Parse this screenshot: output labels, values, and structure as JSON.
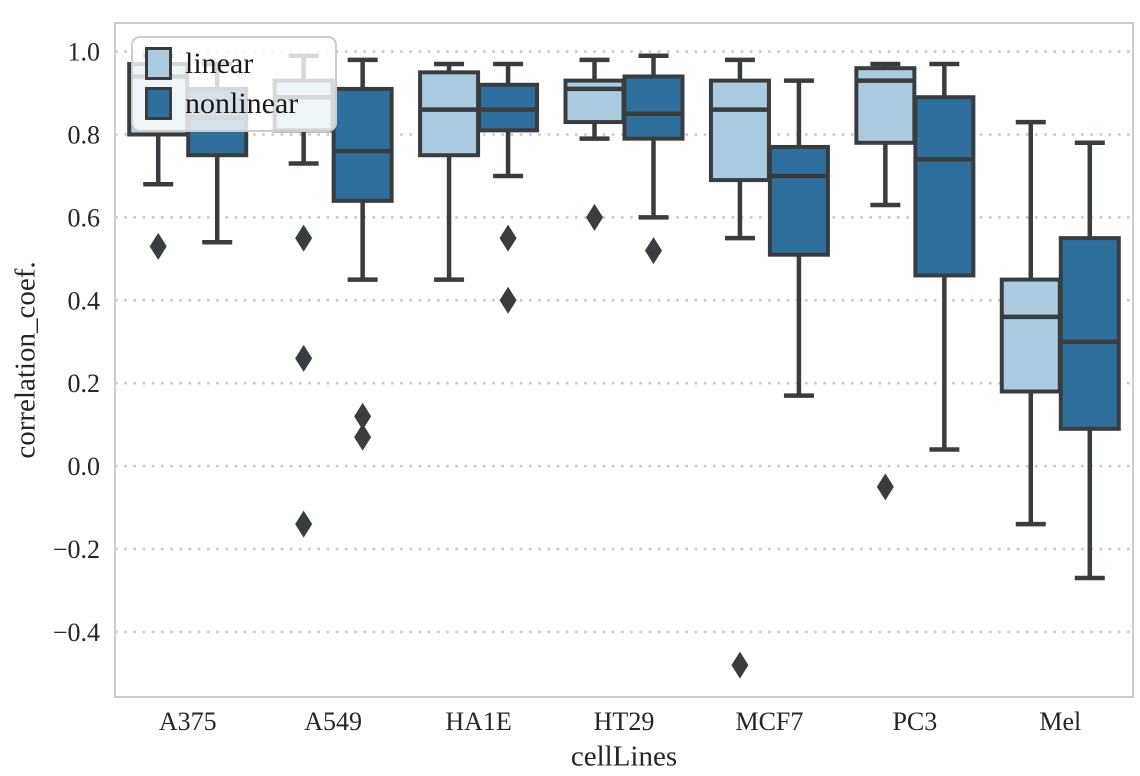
{
  "chart_data": {
    "type": "boxplot",
    "title": "",
    "xlabel": "cellLines",
    "ylabel": "correlation_coef.",
    "categories": [
      "A375",
      "A549",
      "HA1E",
      "HT29",
      "MCF7",
      "PC3",
      "Mel"
    ],
    "yticks": [
      1.0,
      0.8,
      0.6,
      0.4,
      0.2,
      0.0,
      -0.2,
      -0.4
    ],
    "ylim": [
      -0.557,
      1.069
    ],
    "grid": "dotted-horizontal",
    "legend": {
      "position": "upper left",
      "entries": [
        {
          "label": "linear",
          "color": "#aacbe0"
        },
        {
          "label": "nonlinear",
          "color": "#2e6f9e"
        }
      ]
    },
    "colors": {
      "box_light": "#aacbe0",
      "box_dark": "#2e6f9e",
      "line": "#3a3d40",
      "grid": "#c9c9c9",
      "spine": "#cfcfcf",
      "text": "#262626"
    },
    "series": [
      {
        "name": "linear",
        "color": "#aacbe0",
        "boxes": [
          {
            "category": "A375",
            "whisker_low": 0.68,
            "q1": 0.8,
            "median": 0.94,
            "q3": 0.97,
            "whisker_high": 0.99,
            "outliers": [
              0.53
            ]
          },
          {
            "category": "A549",
            "whisker_low": 0.73,
            "q1": 0.81,
            "median": 0.89,
            "q3": 0.93,
            "whisker_high": 0.99,
            "outliers": [
              0.55,
              0.26,
              -0.14
            ]
          },
          {
            "category": "HA1E",
            "whisker_low": 0.45,
            "q1": 0.75,
            "median": 0.86,
            "q3": 0.95,
            "whisker_high": 0.97,
            "outliers": []
          },
          {
            "category": "HT29",
            "whisker_low": 0.79,
            "q1": 0.83,
            "median": 0.91,
            "q3": 0.93,
            "whisker_high": 0.98,
            "outliers": [
              0.6
            ]
          },
          {
            "category": "MCF7",
            "whisker_low": 0.55,
            "q1": 0.69,
            "median": 0.86,
            "q3": 0.93,
            "whisker_high": 0.98,
            "outliers": [
              -0.48
            ]
          },
          {
            "category": "PC3",
            "whisker_low": 0.63,
            "q1": 0.78,
            "median": 0.93,
            "q3": 0.96,
            "whisker_high": 0.97,
            "outliers": [
              -0.05
            ]
          },
          {
            "category": "Mel",
            "whisker_low": -0.14,
            "q1": 0.18,
            "median": 0.36,
            "q3": 0.45,
            "whisker_high": 0.83,
            "outliers": []
          }
        ]
      },
      {
        "name": "nonlinear",
        "color": "#2e6f9e",
        "boxes": [
          {
            "category": "A375",
            "whisker_low": 0.54,
            "q1": 0.75,
            "median": 0.84,
            "q3": 0.91,
            "whisker_high": 0.97,
            "outliers": []
          },
          {
            "category": "A549",
            "whisker_low": 0.45,
            "q1": 0.64,
            "median": 0.76,
            "q3": 0.91,
            "whisker_high": 0.98,
            "outliers": [
              0.12,
              0.07
            ]
          },
          {
            "category": "HA1E",
            "whisker_low": 0.7,
            "q1": 0.81,
            "median": 0.86,
            "q3": 0.92,
            "whisker_high": 0.97,
            "outliers": [
              0.55,
              0.4
            ]
          },
          {
            "category": "HT29",
            "whisker_low": 0.6,
            "q1": 0.79,
            "median": 0.85,
            "q3": 0.94,
            "whisker_high": 0.99,
            "outliers": [
              0.52
            ]
          },
          {
            "category": "MCF7",
            "whisker_low": 0.17,
            "q1": 0.51,
            "median": 0.7,
            "q3": 0.77,
            "whisker_high": 0.93,
            "outliers": []
          },
          {
            "category": "PC3",
            "whisker_low": 0.04,
            "q1": 0.46,
            "median": 0.74,
            "q3": 0.89,
            "whisker_high": 0.97,
            "outliers": []
          },
          {
            "category": "Mel",
            "whisker_low": -0.27,
            "q1": 0.09,
            "median": 0.3,
            "q3": 0.55,
            "whisker_high": 0.78,
            "outliers": []
          }
        ]
      }
    ]
  }
}
